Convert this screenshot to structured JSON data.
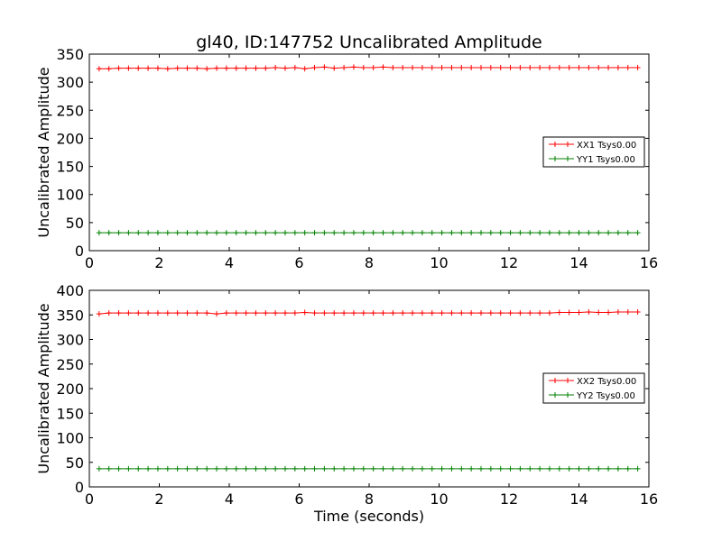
{
  "chart_data": [
    {
      "type": "line",
      "title": "gl40, ID:147752 Uncalibrated Amplitude",
      "xlabel": "",
      "ylabel": "Uncalibrated Amplitude",
      "xlim": [
        0,
        16
      ],
      "ylim": [
        0,
        350
      ],
      "xticks": [
        "0",
        "2",
        "4",
        "6",
        "8",
        "10",
        "12",
        "14",
        "16"
      ],
      "yticks": [
        "0",
        "50",
        "100",
        "150",
        "200",
        "250",
        "300",
        "350"
      ],
      "legend_position": "center-right",
      "x": [
        0.28,
        0.56,
        0.84,
        1.12,
        1.4,
        1.68,
        1.96,
        2.24,
        2.52,
        2.8,
        3.08,
        3.36,
        3.64,
        3.92,
        4.2,
        4.48,
        4.76,
        5.04,
        5.32,
        5.6,
        5.88,
        6.16,
        6.44,
        6.72,
        7.0,
        7.28,
        7.56,
        7.84,
        8.12,
        8.4,
        8.68,
        8.96,
        9.24,
        9.52,
        9.8,
        10.08,
        10.36,
        10.64,
        10.92,
        11.2,
        11.48,
        11.76,
        12.04,
        12.32,
        12.6,
        12.88,
        13.16,
        13.44,
        13.72,
        14.0,
        14.28,
        14.56,
        14.84,
        15.12,
        15.4,
        15.68
      ],
      "series": [
        {
          "name": "XX1 Tsys0.00",
          "color": "#ff0000",
          "values": [
            324,
            324,
            325,
            325,
            325,
            325,
            325,
            324,
            325,
            325,
            325,
            324,
            325,
            325,
            325,
            325,
            325,
            325,
            326,
            325,
            326,
            324,
            326,
            327,
            325,
            326,
            327,
            326,
            326,
            327,
            326,
            326,
            326,
            326,
            326,
            326,
            326,
            326,
            326,
            326,
            326,
            326,
            326,
            326,
            326,
            326,
            326,
            326,
            326,
            326,
            326,
            326,
            326,
            326,
            326,
            326
          ]
        },
        {
          "name": "YY1 Tsys0.00",
          "color": "#008000",
          "values": [
            32,
            32,
            32,
            32,
            32,
            32,
            32,
            32,
            32,
            32,
            32,
            32,
            32,
            32,
            32,
            32,
            32,
            32,
            32,
            32,
            32,
            32,
            32,
            32,
            32,
            32,
            32,
            32,
            32,
            32,
            32,
            32,
            32,
            32,
            32,
            32,
            32,
            32,
            32,
            32,
            32,
            32,
            32,
            32,
            32,
            32,
            32,
            32,
            32,
            32,
            32,
            32,
            32,
            32,
            32,
            32
          ]
        }
      ]
    },
    {
      "type": "line",
      "title": "",
      "xlabel": "Time (seconds)",
      "ylabel": "Uncalibrated Amplitude",
      "xlim": [
        0,
        16
      ],
      "ylim": [
        0,
        400
      ],
      "xticks": [
        "0",
        "2",
        "4",
        "6",
        "8",
        "10",
        "12",
        "14",
        "16"
      ],
      "yticks": [
        "0",
        "50",
        "100",
        "150",
        "200",
        "250",
        "300",
        "350",
        "400"
      ],
      "legend_position": "center-right",
      "x": [
        0.28,
        0.56,
        0.84,
        1.12,
        1.4,
        1.68,
        1.96,
        2.24,
        2.52,
        2.8,
        3.08,
        3.36,
        3.64,
        3.92,
        4.2,
        4.48,
        4.76,
        5.04,
        5.32,
        5.6,
        5.88,
        6.16,
        6.44,
        6.72,
        7.0,
        7.28,
        7.56,
        7.84,
        8.12,
        8.4,
        8.68,
        8.96,
        9.24,
        9.52,
        9.8,
        10.08,
        10.36,
        10.64,
        10.92,
        11.2,
        11.48,
        11.76,
        12.04,
        12.32,
        12.6,
        12.88,
        13.16,
        13.44,
        13.72,
        14.0,
        14.28,
        14.56,
        14.84,
        15.12,
        15.4,
        15.68
      ],
      "series": [
        {
          "name": "XX2 Tsys0.00",
          "color": "#ff0000",
          "values": [
            352,
            354,
            354,
            354,
            354,
            354,
            354,
            354,
            354,
            354,
            354,
            354,
            352,
            354,
            354,
            354,
            354,
            354,
            354,
            354,
            354,
            355,
            354,
            354,
            354,
            354,
            354,
            354,
            354,
            354,
            354,
            354,
            354,
            354,
            354,
            354,
            354,
            354,
            354,
            354,
            354,
            354,
            354,
            354,
            354,
            354,
            354,
            355,
            355,
            355,
            356,
            355,
            355,
            356,
            356,
            356
          ]
        },
        {
          "name": "YY2 Tsys0.00",
          "color": "#008000",
          "values": [
            37,
            37,
            37,
            37,
            37,
            37,
            37,
            37,
            37,
            37,
            37,
            37,
            37,
            37,
            37,
            37,
            37,
            37,
            37,
            37,
            37,
            37,
            37,
            37,
            37,
            37,
            37,
            37,
            37,
            37,
            37,
            37,
            37,
            37,
            37,
            37,
            37,
            37,
            37,
            37,
            37,
            37,
            37,
            37,
            37,
            37,
            37,
            37,
            37,
            37,
            37,
            37,
            37,
            37,
            37,
            37
          ]
        }
      ]
    }
  ]
}
